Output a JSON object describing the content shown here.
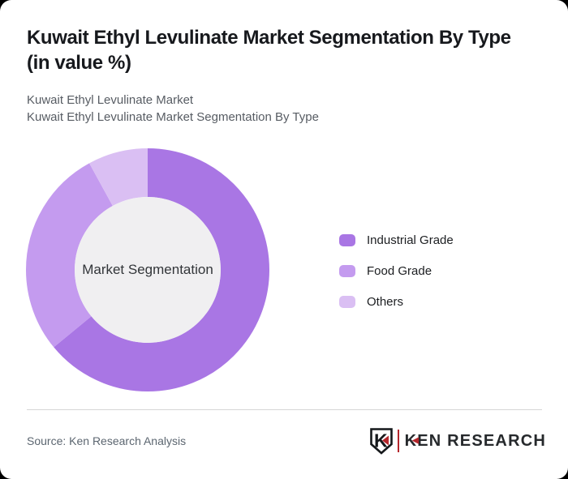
{
  "page": {
    "background_color": "#000000",
    "card_background_color": "#ffffff"
  },
  "header": {
    "title_line1": "Kuwait Ethyl Levulinate Market Segmentation By Type",
    "title_line2": "(in value %)",
    "subtitle_line1": "Kuwait Ethyl Levulinate Market",
    "subtitle_line2": "Kuwait Ethyl Levulinate Market Segmentation By Type"
  },
  "chart_data": {
    "type": "pie",
    "variant": "donut",
    "title": "Kuwait Ethyl Levulinate Market Segmentation By Type (in value %)",
    "center_label": "Market Segmentation",
    "categories": [
      "Industrial Grade",
      "Food Grade",
      "Others"
    ],
    "values": [
      64,
      28,
      8
    ],
    "unit": "value %",
    "start_angle_deg": 0,
    "direction": "clockwise",
    "inner_radius_ratio": 0.6,
    "center_circle_color": "#f0eff1",
    "center_label_color": "#323539",
    "legend_position": "right",
    "segments": [
      {
        "label": "Industrial Grade",
        "value": 64,
        "color": "#a976e4"
      },
      {
        "label": "Food Grade",
        "value": 28,
        "color": "#c49bef"
      },
      {
        "label": "Others",
        "value": 8,
        "color": "#dabff3"
      }
    ]
  },
  "footer": {
    "source_text": "Source: Ken Research Analysis",
    "logo": {
      "brand": "KEN RESEARCH",
      "monogram": "K",
      "accent_color": "#b5272c",
      "text_color": "#26292c"
    }
  }
}
